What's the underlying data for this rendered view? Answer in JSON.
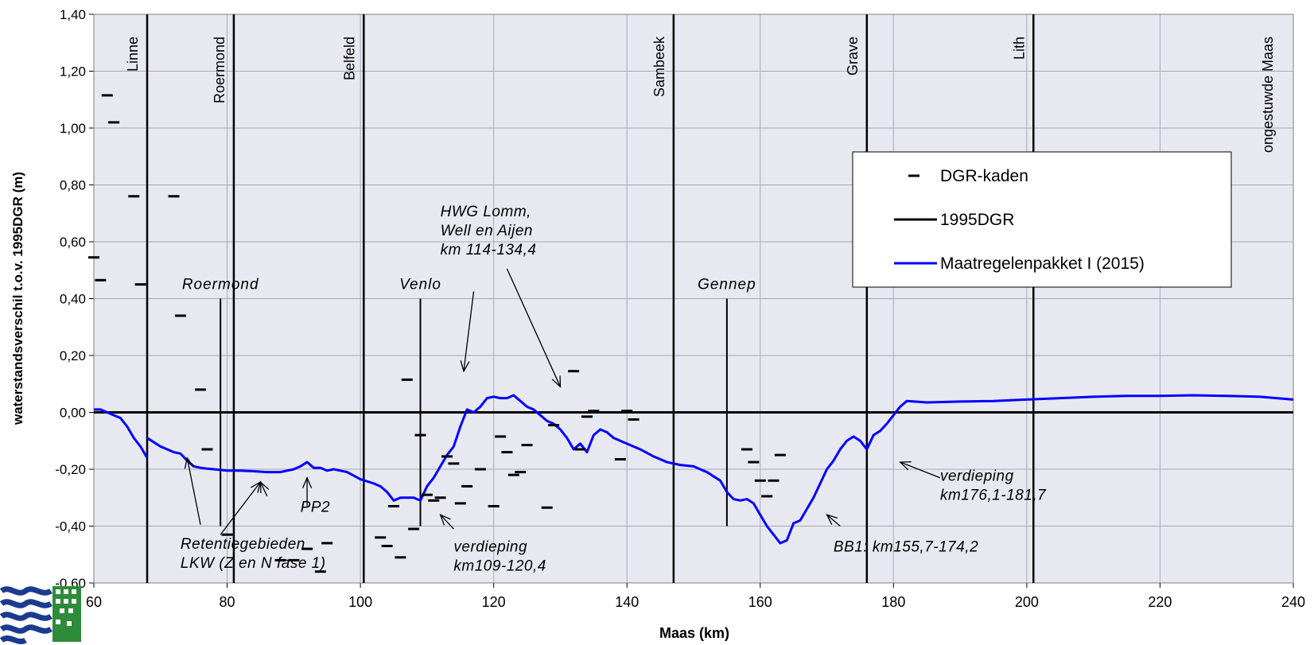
{
  "chart_data": {
    "type": "line",
    "xlabel": "Maas (km)",
    "ylabel": "waterstandsverschil t.o.v. 1995DGR (m)",
    "xlim": [
      60,
      240
    ],
    "ylim": [
      -0.6,
      1.4
    ],
    "x_ticks": [
      60,
      80,
      100,
      120,
      140,
      160,
      180,
      200,
      220,
      240
    ],
    "y_ticks": [
      -0.6,
      -0.4,
      -0.2,
      0.0,
      0.2,
      0.4,
      0.6,
      0.8,
      1.0,
      1.2,
      1.4
    ],
    "y_tick_labels": [
      "-0,60",
      "-0,40",
      "-0,20",
      "0,00",
      "0,20",
      "0,40",
      "0,60",
      "0,80",
      "1,00",
      "1,20",
      "1,40"
    ],
    "grid": true,
    "plot_background": "#e8e8f0",
    "legend": {
      "placement": "right",
      "entries": [
        {
          "label": "DGR-kaden",
          "marker": "dash",
          "color": "#000000"
        },
        {
          "label": "1995DGR",
          "marker": "line",
          "color": "#000000"
        },
        {
          "label": "Maatregelenpakket I (2015)",
          "marker": "line",
          "color": "#0000ff"
        }
      ]
    },
    "vertical_markers": [
      {
        "x": 68,
        "label": "Linne"
      },
      {
        "x": 81,
        "label": "Roermond"
      },
      {
        "x": 100.5,
        "label": "Belfeld"
      },
      {
        "x": 147,
        "label": "Sambeek"
      },
      {
        "x": 176,
        "label": "Grave"
      },
      {
        "x": 201,
        "label": "Lith"
      },
      {
        "x": 240,
        "label": "ongestuwde Maas"
      }
    ],
    "city_markers": [
      {
        "x": 79,
        "y_top": 0.4,
        "y_bottom": -0.4,
        "label": "Roermond"
      },
      {
        "x": 109,
        "y_top": 0.4,
        "y_bottom": -0.4,
        "label": "Venlo"
      },
      {
        "x": 155,
        "y_top": 0.4,
        "y_bottom": -0.4,
        "label": "Gennep"
      }
    ],
    "series": [
      {
        "name": "1995DGR",
        "color": "#000000",
        "x": [
          60,
          240
        ],
        "y": [
          0.0,
          0.0
        ]
      },
      {
        "name": "Maatregelenpakket I (2015)",
        "color": "#0000ff",
        "segments": [
          {
            "x": [
              60,
              61,
              62,
              63,
              64,
              65,
              66,
              67,
              68
            ],
            "y": [
              0.01,
              0.01,
              0.0,
              -0.01,
              -0.02,
              -0.05,
              -0.09,
              -0.12,
              -0.16
            ]
          },
          {
            "x": [
              68,
              70,
              72,
              73,
              74,
              75,
              76,
              77,
              78,
              80,
              82,
              84,
              86,
              88,
              90,
              91,
              92,
              93,
              94,
              95,
              96,
              98,
              100,
              102,
              103,
              104,
              105,
              106,
              107,
              108,
              109,
              110,
              111,
              112,
              113,
              114,
              115,
              116,
              117,
              118,
              119,
              120,
              121,
              122,
              123,
              124,
              125,
              126,
              127,
              128,
              129,
              130,
              131,
              132,
              133,
              134,
              135,
              136,
              137,
              138,
              139,
              140,
              142,
              144,
              146,
              148,
              150,
              152,
              154,
              155,
              156,
              157,
              158,
              159,
              160,
              161,
              162,
              163,
              164,
              165,
              166,
              167,
              168,
              169,
              170,
              171,
              172,
              173,
              174,
              175,
              176,
              177,
              178,
              179,
              180,
              181,
              182,
              185,
              190,
              195,
              200,
              205,
              210,
              215,
              220,
              225,
              230,
              235,
              240
            ],
            "y": [
              -0.09,
              -0.12,
              -0.14,
              -0.145,
              -0.17,
              -0.19,
              -0.195,
              -0.198,
              -0.2,
              -0.205,
              -0.205,
              -0.207,
              -0.21,
              -0.21,
              -0.2,
              -0.19,
              -0.175,
              -0.195,
              -0.195,
              -0.205,
              -0.2,
              -0.21,
              -0.235,
              -0.25,
              -0.26,
              -0.28,
              -0.31,
              -0.3,
              -0.3,
              -0.3,
              -0.31,
              -0.26,
              -0.23,
              -0.19,
              -0.15,
              -0.12,
              -0.05,
              0.01,
              0.0,
              0.02,
              0.05,
              0.055,
              0.05,
              0.05,
              0.06,
              0.04,
              0.02,
              0.01,
              -0.01,
              -0.03,
              -0.04,
              -0.06,
              -0.09,
              -0.13,
              -0.11,
              -0.14,
              -0.08,
              -0.06,
              -0.07,
              -0.09,
              -0.1,
              -0.11,
              -0.13,
              -0.155,
              -0.175,
              -0.185,
              -0.19,
              -0.21,
              -0.24,
              -0.28,
              -0.305,
              -0.31,
              -0.305,
              -0.32,
              -0.36,
              -0.4,
              -0.43,
              -0.46,
              -0.45,
              -0.39,
              -0.38,
              -0.34,
              -0.3,
              -0.25,
              -0.2,
              -0.17,
              -0.13,
              -0.1,
              -0.085,
              -0.1,
              -0.13,
              -0.08,
              -0.065,
              -0.04,
              -0.01,
              0.02,
              0.04,
              0.035,
              0.038,
              0.04,
              0.045,
              0.05,
              0.055,
              0.058,
              0.058,
              0.06,
              0.058,
              0.055,
              0.045
            ]
          }
        ]
      },
      {
        "name": "DGR-kaden",
        "type": "scatter",
        "marker": "dash",
        "color": "#000000",
        "points": [
          [
            60,
            0.545
          ],
          [
            61,
            0.465
          ],
          [
            62,
            1.115
          ],
          [
            63,
            1.02
          ],
          [
            66,
            0.76
          ],
          [
            67,
            0.45
          ],
          [
            72,
            0.76
          ],
          [
            73,
            0.34
          ],
          [
            76,
            0.08
          ],
          [
            77,
            -0.13
          ],
          [
            80,
            -0.43
          ],
          [
            95,
            -0.46
          ],
          [
            88,
            -0.52
          ],
          [
            90,
            -0.52
          ],
          [
            92,
            -0.48
          ],
          [
            94,
            -0.56
          ],
          [
            103,
            -0.44
          ],
          [
            104,
            -0.47
          ],
          [
            105,
            -0.33
          ],
          [
            106,
            -0.51
          ],
          [
            107,
            0.115
          ],
          [
            108,
            -0.41
          ],
          [
            109,
            -0.08
          ],
          [
            110,
            -0.29
          ],
          [
            111,
            -0.31
          ],
          [
            112,
            -0.3
          ],
          [
            113,
            -0.155
          ],
          [
            114,
            -0.18
          ],
          [
            115,
            -0.32
          ],
          [
            116,
            -0.26
          ],
          [
            118,
            -0.2
          ],
          [
            120,
            -0.33
          ],
          [
            121,
            -0.085
          ],
          [
            122,
            -0.14
          ],
          [
            123,
            -0.22
          ],
          [
            124,
            -0.21
          ],
          [
            125,
            -0.115
          ],
          [
            128,
            -0.335
          ],
          [
            129,
            -0.045
          ],
          [
            132,
            0.145
          ],
          [
            133,
            -0.13
          ],
          [
            134,
            -0.015
          ],
          [
            135,
            0.005
          ],
          [
            139,
            -0.165
          ],
          [
            140,
            0.005
          ],
          [
            141,
            -0.025
          ],
          [
            158,
            -0.13
          ],
          [
            159,
            -0.175
          ],
          [
            160,
            -0.24
          ],
          [
            161,
            -0.295
          ],
          [
            162,
            -0.24
          ],
          [
            163,
            -0.15
          ]
        ]
      }
    ],
    "annotations": [
      {
        "lines": [
          "HWG Lomm,",
          "Well en  Aijen",
          "km 114-134,4"
        ],
        "x": 112,
        "y": 0.69
      },
      {
        "lines": [
          "Retentiegebieden",
          "LKW (Z en N fase 1)"
        ],
        "x": 73,
        "y": -0.48
      },
      {
        "lines": [
          "PP2"
        ],
        "x": 91,
        "y": -0.35
      },
      {
        "lines": [
          "verdieping",
          "km109-120,4"
        ],
        "x": 114,
        "y": -0.49
      },
      {
        "lines": [
          "verdieping",
          "km176,1-181,7"
        ],
        "x": 187,
        "y": -0.24
      },
      {
        "lines": [
          "BB1: km155,7-174,2"
        ],
        "x": 171,
        "y": -0.49
      }
    ],
    "arrows": [
      {
        "from": [
          117,
          0.425
        ],
        "to": [
          115.5,
          0.145
        ]
      },
      {
        "from": [
          122,
          0.505
        ],
        "to": [
          130,
          0.09
        ]
      },
      {
        "from": [
          76,
          -0.395
        ],
        "to": [
          74,
          -0.16
        ]
      },
      {
        "from": [
          79,
          -0.43
        ],
        "to": [
          85,
          -0.245
        ]
      },
      {
        "from": [
          86,
          -0.295
        ],
        "to": [
          85,
          -0.245
        ]
      },
      {
        "from": [
          92,
          -0.33
        ],
        "to": [
          92,
          -0.23
        ]
      },
      {
        "from": [
          114,
          -0.41
        ],
        "to": [
          112,
          -0.36
        ]
      },
      {
        "from": [
          187,
          -0.23
        ],
        "to": [
          181,
          -0.175
        ]
      },
      {
        "from": [
          172,
          -0.4
        ],
        "to": [
          170,
          -0.36
        ]
      }
    ]
  }
}
